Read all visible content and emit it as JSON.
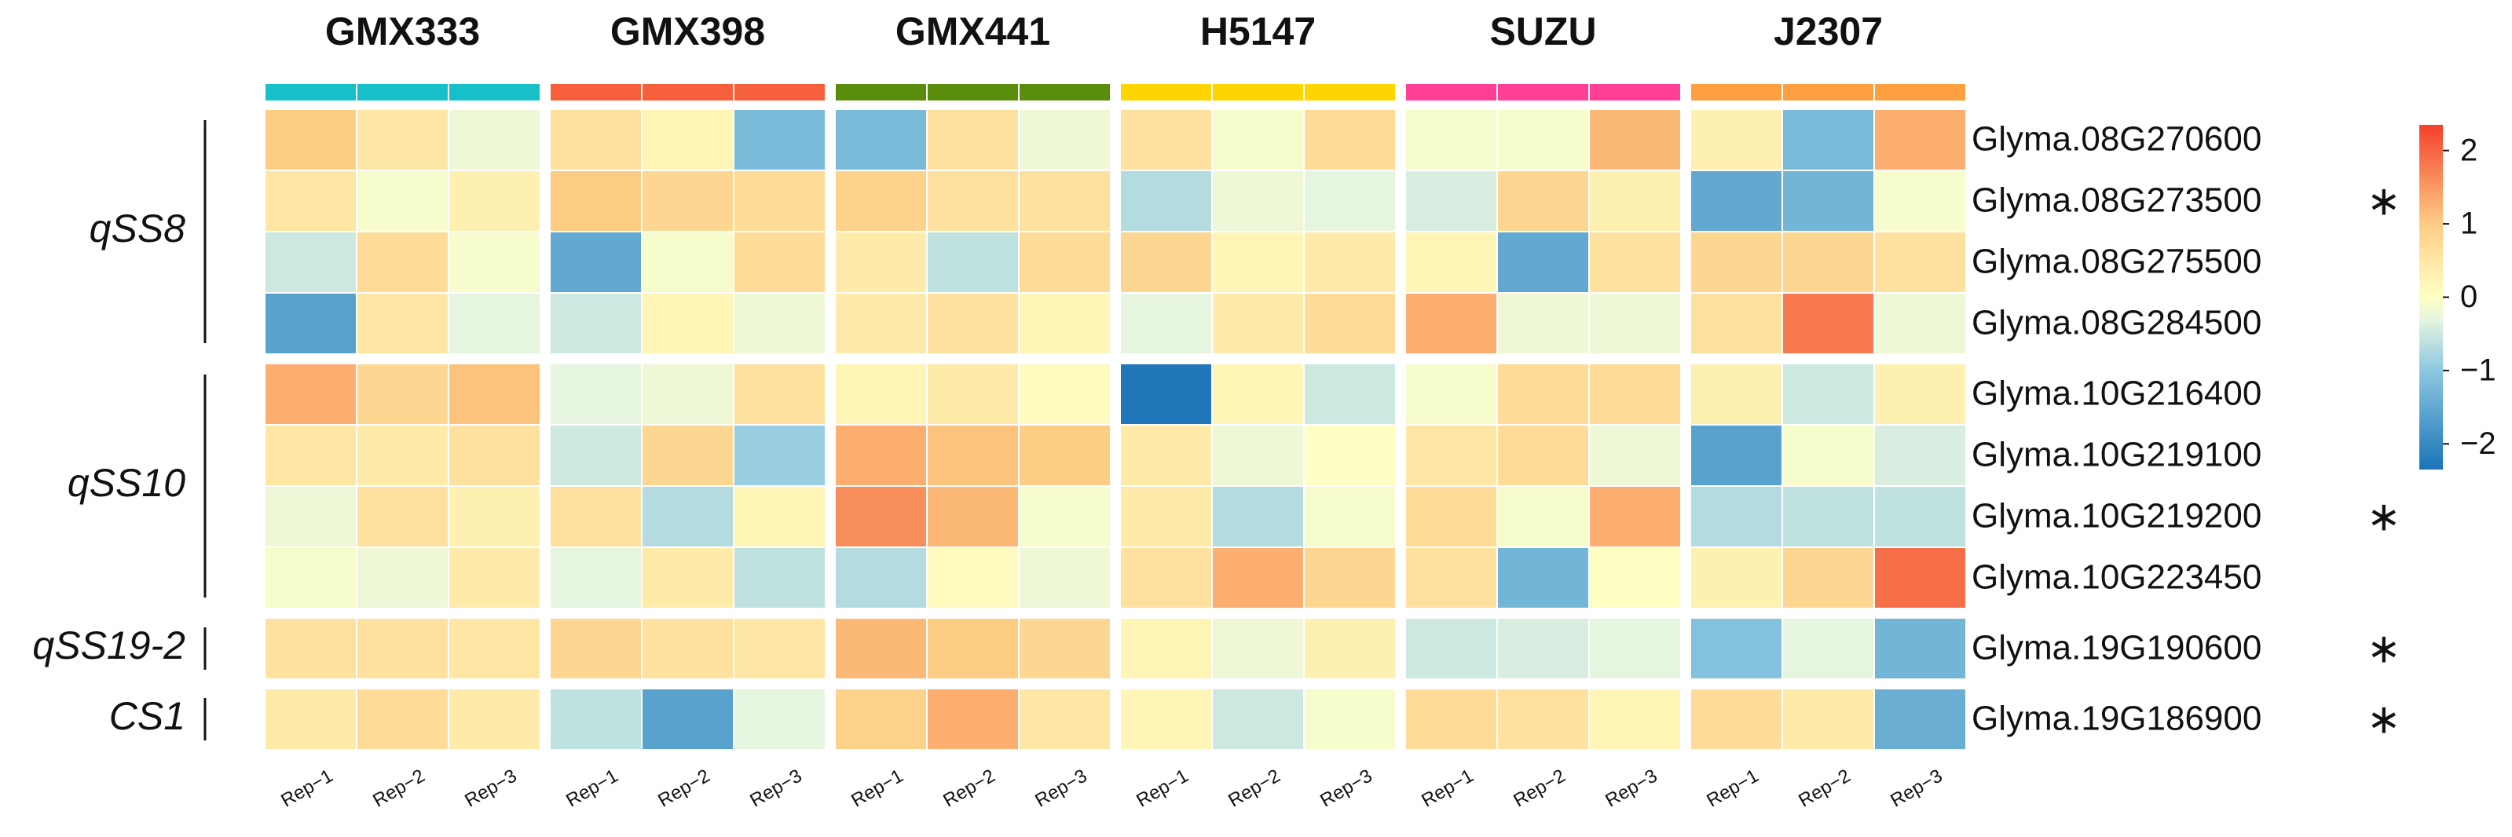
{
  "chart_data": {
    "type": "heatmap",
    "groups": [
      {
        "name": "GMX333",
        "color": "#17bfc9",
        "columns": [
          "Rep−1",
          "Rep−2",
          "Rep−3"
        ]
      },
      {
        "name": "GMX398",
        "color": "#f6603c",
        "columns": [
          "Rep−1",
          "Rep−2",
          "Rep−3"
        ]
      },
      {
        "name": "GMX441",
        "color": "#5b8d0c",
        "columns": [
          "Rep−1",
          "Rep−2",
          "Rep−3"
        ]
      },
      {
        "name": "H5147",
        "color": "#ffd500",
        "columns": [
          "Rep−1",
          "Rep−2",
          "Rep−3"
        ]
      },
      {
        "name": "SUZU",
        "color": "#ff4096",
        "columns": [
          "Rep−1",
          "Rep−2",
          "Rep−3"
        ]
      },
      {
        "name": "J2307",
        "color": "#ffa040",
        "columns": [
          "Rep−1",
          "Rep−2",
          "Rep−3"
        ]
      }
    ],
    "rows": [
      "Glyma.08G270600",
      "Glyma.08G273500",
      "Glyma.08G275500",
      "Glyma.08G284500",
      "Glyma.10G216400",
      "Glyma.10G219100",
      "Glyma.10G219200",
      "Glyma.10G223450",
      "Glyma.19G190600",
      "Glyma.19G186900"
    ],
    "row_marks": [
      null,
      "∗",
      null,
      null,
      null,
      null,
      "∗",
      null,
      "∗",
      "∗"
    ],
    "row_groups": [
      {
        "name": "qSS8",
        "rows": [
          0,
          3
        ]
      },
      {
        "name": "qSS10",
        "rows": [
          4,
          7
        ]
      },
      {
        "name": "qSS19-2",
        "rows": [
          8,
          8
        ]
      },
      {
        "name": "CS1",
        "rows": [
          9,
          9
        ]
      }
    ],
    "values": [
      [
        1.0,
        0.5,
        -0.2,
        0.6,
        0.2,
        -1.2,
        -1.2,
        0.6,
        -0.2,
        0.6,
        -0.1,
        0.7,
        -0.1,
        -0.1,
        1.2,
        0.3,
        -1.2,
        1.3
      ],
      [
        0.5,
        -0.1,
        0.3,
        1.0,
        0.8,
        0.7,
        0.9,
        0.6,
        0.6,
        -0.7,
        -0.2,
        -0.3,
        -0.4,
        0.8,
        0.3,
        -1.5,
        -1.3,
        -0.1
      ],
      [
        -0.5,
        0.7,
        -0.1,
        -1.5,
        -0.1,
        0.7,
        0.4,
        -0.6,
        0.7,
        0.8,
        0.2,
        0.4,
        0.2,
        -1.5,
        0.6,
        0.8,
        0.8,
        0.6
      ],
      [
        -1.6,
        0.5,
        -0.3,
        -0.5,
        0.2,
        -0.2,
        0.4,
        0.6,
        0.2,
        -0.3,
        0.4,
        0.7,
        1.3,
        -0.2,
        -0.2,
        0.6,
        1.8,
        -0.2
      ],
      [
        1.3,
        0.8,
        1.1,
        -0.3,
        -0.2,
        0.6,
        0.2,
        0.4,
        0.1,
        -2.3,
        0.2,
        -0.5,
        -0.1,
        0.7,
        0.7,
        0.3,
        -0.5,
        0.3
      ],
      [
        0.5,
        0.4,
        0.6,
        -0.5,
        0.8,
        -0.9,
        1.3,
        1.1,
        1.0,
        0.4,
        -0.2,
        0.0,
        0.5,
        0.7,
        -0.2,
        -1.6,
        -0.1,
        -0.4
      ],
      [
        -0.2,
        0.6,
        0.3,
        0.6,
        -0.7,
        0.2,
        1.6,
        1.2,
        -0.1,
        0.4,
        -0.7,
        -0.1,
        0.7,
        -0.1,
        1.3,
        -0.7,
        -0.6,
        -0.6
      ],
      [
        -0.1,
        -0.2,
        0.4,
        -0.3,
        0.4,
        -0.6,
        -0.7,
        0.1,
        -0.2,
        0.6,
        1.3,
        0.8,
        0.6,
        -1.3,
        0.0,
        0.3,
        0.8,
        1.9
      ],
      [
        0.6,
        0.6,
        0.5,
        0.8,
        0.6,
        0.5,
        1.2,
        1.0,
        0.8,
        0.2,
        -0.2,
        0.3,
        -0.5,
        -0.4,
        -0.3,
        -1.1,
        -0.3,
        -1.3
      ],
      [
        0.4,
        0.7,
        0.4,
        -0.6,
        -1.6,
        -0.3,
        0.9,
        1.3,
        0.5,
        0.2,
        -0.5,
        -0.1,
        0.7,
        0.6,
        0.2,
        0.7,
        0.4,
        -1.4
      ]
    ],
    "zlim": [
      -2.35,
      2.35
    ],
    "zticks": [
      2,
      1,
      {
        "value": 0,
        "label": "0"
      },
      {
        "value": -1,
        "label": "−1"
      },
      {
        "value": -2,
        "label": "−2"
      }
    ],
    "colorscale": [
      [
        -2.35,
        "#1b74b8"
      ],
      [
        -1,
        "#8cc7e0"
      ],
      [
        -0.3,
        "#e6f5e0"
      ],
      [
        0,
        "#ffffc4"
      ],
      [
        1,
        "#fdcd84"
      ],
      [
        2.35,
        "#f4402c"
      ]
    ]
  }
}
